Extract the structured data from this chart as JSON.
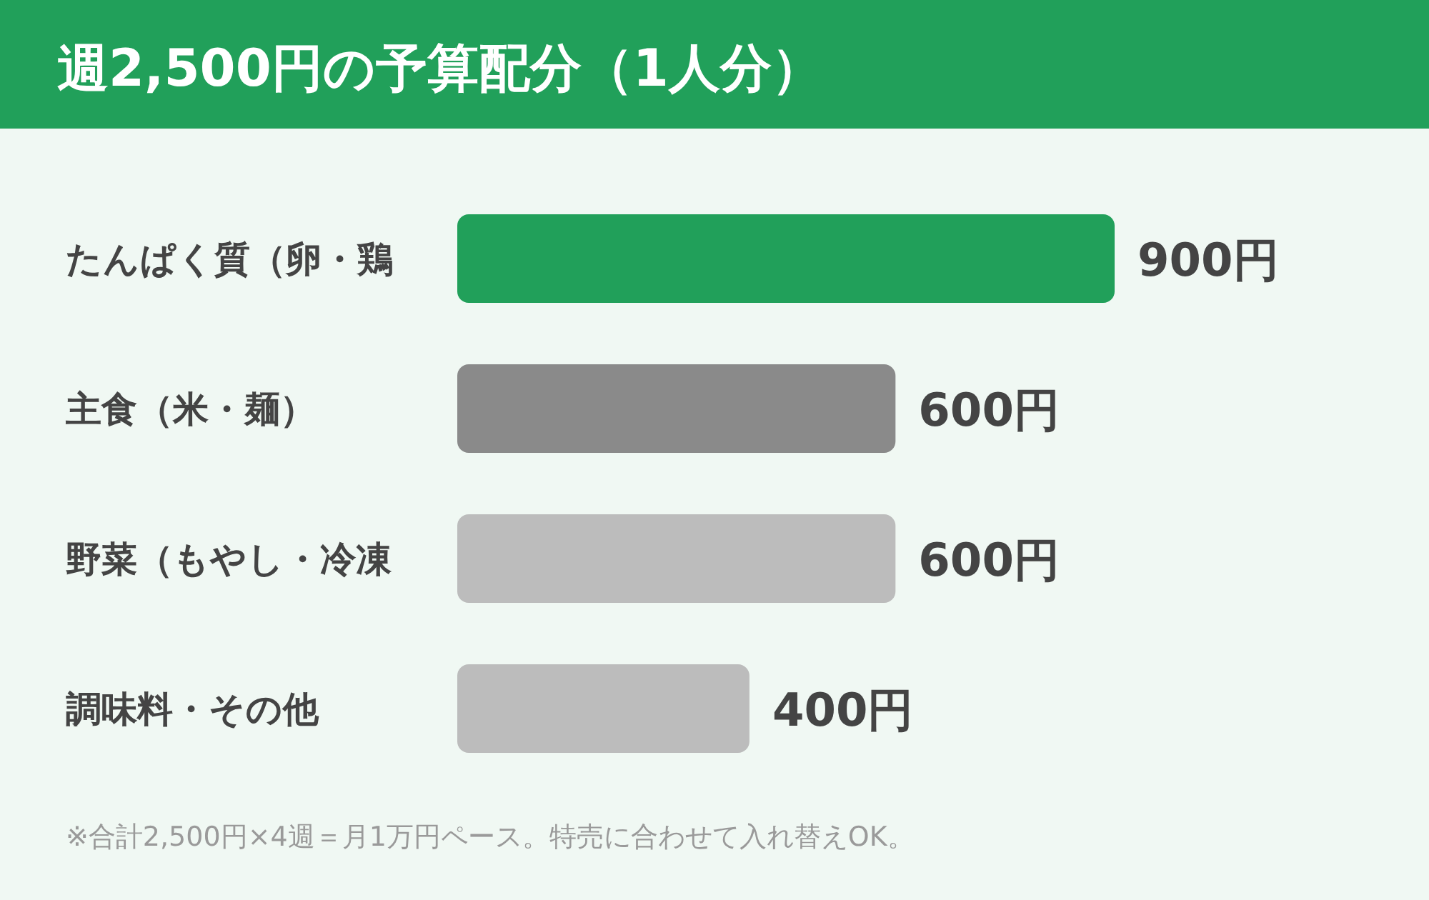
{
  "chart_data": {
    "type": "bar",
    "orientation": "horizontal",
    "title": "週2,500円の予算配分（1人分）",
    "categories": [
      "たんぱく質（卵・鶏",
      "主食（米・麺）",
      "野菜（もやし・冷凍",
      "調味料・その他"
    ],
    "values": [
      900,
      600,
      600,
      400
    ],
    "colors": [
      "#21a05a",
      "#8a8a8a",
      "#bcbcbc",
      "#bcbcbc"
    ],
    "value_labels": [
      "900円",
      "600円",
      "600円",
      "400円"
    ],
    "annotations": [
      "※合計2,500円×4週＝月1万円ペース。特売に合わせて入れ替えOK。"
    ]
  }
}
